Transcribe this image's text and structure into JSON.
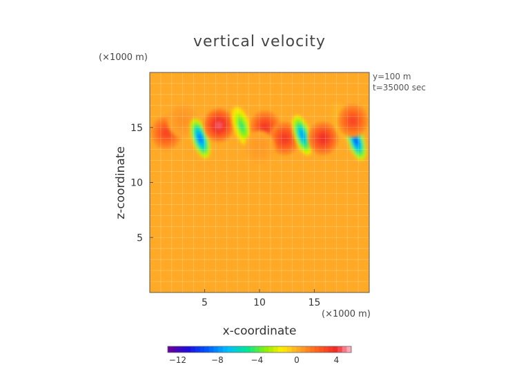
{
  "chart_data": {
    "type": "heatmap",
    "title": "vertical velocity",
    "xlabel": "x-coordinate",
    "ylabel": "z-coordinate",
    "x_unit": "(×1000 m)",
    "y_unit": "(×1000 m)",
    "annotations": [
      "y=100 m",
      "t=35000 sec"
    ],
    "xlim": [
      0,
      20
    ],
    "ylim": [
      0,
      20
    ],
    "x_ticks": [
      5,
      10,
      15
    ],
    "y_ticks": [
      5,
      10,
      15
    ],
    "x_tick_labels": [
      "5",
      "10",
      "15"
    ],
    "y_tick_labels": [
      "5",
      "10",
      "15"
    ],
    "grid": true,
    "colorbar": {
      "range": [
        -13,
        5.5
      ],
      "ticks": [
        -12,
        -8,
        -4,
        0,
        4
      ],
      "tick_labels": [
        "−12",
        "−8",
        "−4",
        "0",
        "4"
      ],
      "placement": "bottom"
    },
    "features": [
      {
        "x": 1.5,
        "z": 14.5,
        "w": 3.0
      },
      {
        "x": 3.0,
        "z": 15.6,
        "w": 0.8
      },
      {
        "x": 4.6,
        "z": 14.0,
        "w": -8.5
      },
      {
        "x": 6.3,
        "z": 15.2,
        "w": 4.5
      },
      {
        "x": 8.4,
        "z": 15.1,
        "w": -4.5
      },
      {
        "x": 10.5,
        "z": 15.0,
        "w": 3.5
      },
      {
        "x": 12.3,
        "z": 14.0,
        "w": 3.5
      },
      {
        "x": 10.0,
        "z": 13.2,
        "w": 0.6
      },
      {
        "x": 13.9,
        "z": 14.3,
        "w": -7.5
      },
      {
        "x": 15.8,
        "z": 14.0,
        "w": 3.8
      },
      {
        "x": 17.5,
        "z": 15.5,
        "w": -0.4
      },
      {
        "x": 18.8,
        "z": 13.8,
        "w": -9.0
      },
      {
        "x": 18.5,
        "z": 15.6,
        "w": 3.0
      }
    ]
  }
}
